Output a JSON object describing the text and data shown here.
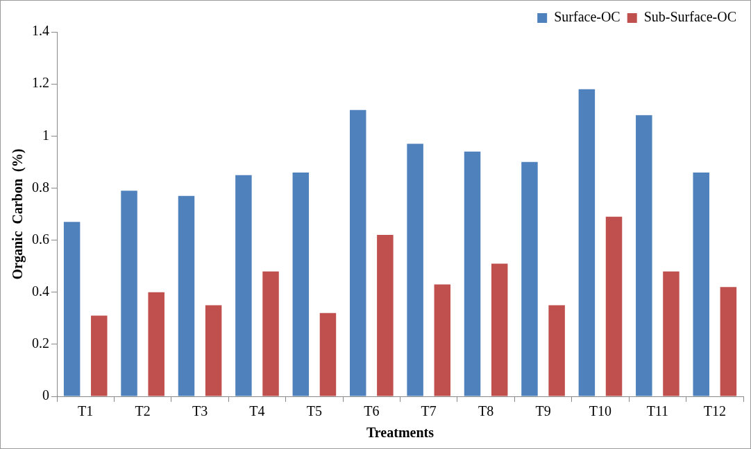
{
  "chart_data": {
    "type": "bar",
    "xlabel": "Treatments",
    "ylabel": "Organic  Carbon  (%)",
    "categories": [
      "T1",
      "T2",
      "T3",
      "T4",
      "T5",
      "T6",
      "T7",
      "T8",
      "T9",
      "T10",
      "T11",
      "T12"
    ],
    "series": [
      {
        "name": "Surface-OC",
        "color": "#4f81bd",
        "values": [
          0.67,
          0.79,
          0.77,
          0.85,
          0.86,
          1.1,
          0.97,
          0.94,
          0.9,
          1.18,
          1.08,
          0.86
        ]
      },
      {
        "name": "Sub-Surface-OC",
        "color": "#c0504d",
        "values": [
          0.31,
          0.4,
          0.35,
          0.48,
          0.32,
          0.62,
          0.43,
          0.51,
          0.35,
          0.69,
          0.48,
          0.42
        ]
      }
    ],
    "ylim": [
      0,
      1.4
    ],
    "yticks": [
      0,
      0.2,
      0.4,
      0.6,
      0.8,
      1,
      1.2,
      1.4
    ],
    "grid": false,
    "legend": "top right"
  }
}
